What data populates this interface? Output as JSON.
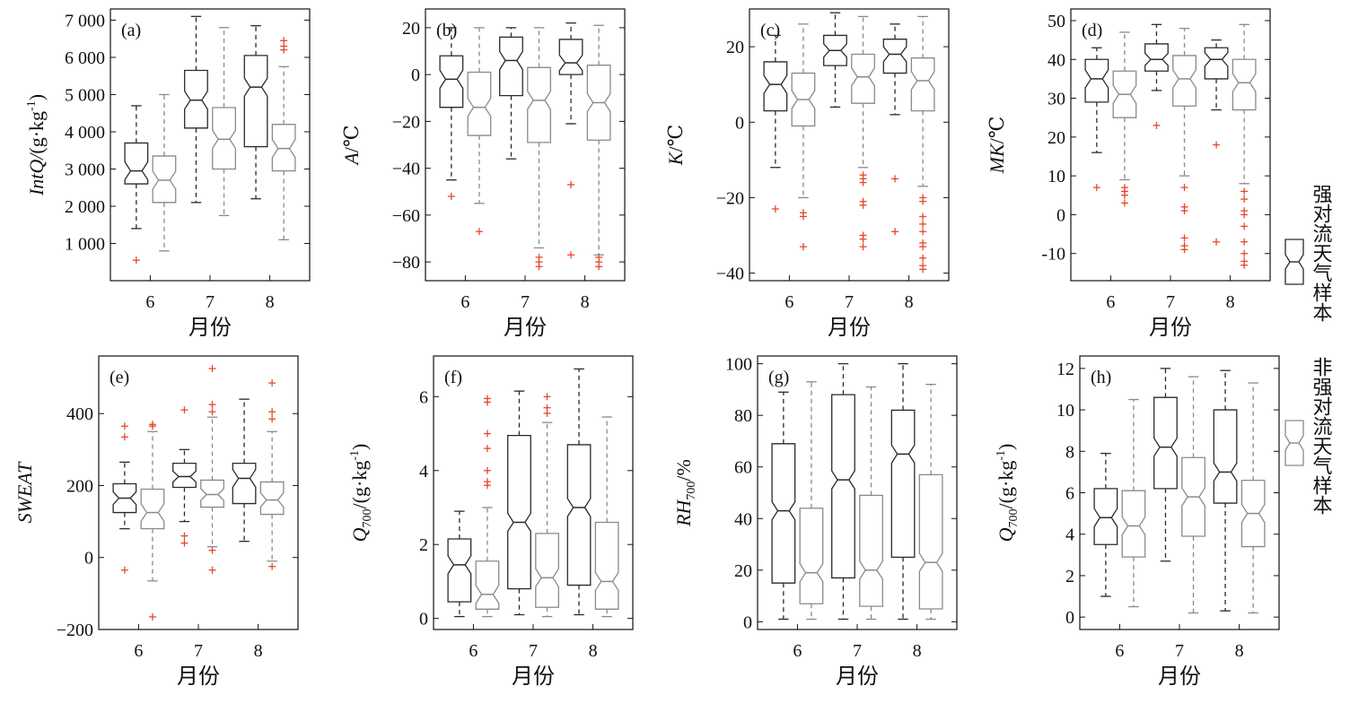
{
  "colors": {
    "strong": "#2a2a2a",
    "nonstrong": "#8a8a8a",
    "outlier": "#e8472b",
    "axis": "#111111"
  },
  "legend": {
    "strong_label": "强对流天气样本",
    "nonstrong_label": "非强对流天气样本"
  },
  "chart_data": [
    {
      "type": "box",
      "panel": "(a)",
      "ylabel_parts": [
        {
          "text": "IntQ/",
          "italic": true
        },
        {
          "text": "(g·kg",
          "italic": false
        },
        {
          "text": "-1",
          "italic": false,
          "sup": true
        },
        {
          "text": ")",
          "italic": false
        }
      ],
      "xlabel": "月份",
      "categories": [
        "6",
        "7",
        "8"
      ],
      "ylim": [
        0,
        7300
      ],
      "yticks": [
        1000,
        2000,
        3000,
        4000,
        5000,
        6000,
        7000
      ],
      "ytick_labels": [
        "1 000",
        "2 000",
        "3 000",
        "4 000",
        "5 000",
        "6 000",
        "7 000"
      ],
      "series": [
        {
          "name": "强对流天气样本",
          "boxes": [
            {
              "month": "6",
              "min": 1400,
              "q1": 2600,
              "median": 2950,
              "q3": 3700,
              "max": 4700,
              "outliers": [
                550
              ]
            },
            {
              "month": "7",
              "min": 2100,
              "q1": 4100,
              "median": 4850,
              "q3": 5650,
              "max": 7100,
              "outliers": []
            },
            {
              "month": "8",
              "min": 2200,
              "q1": 3600,
              "median": 5200,
              "q3": 6050,
              "max": 6850,
              "outliers": []
            }
          ]
        },
        {
          "name": "非强对流天气样本",
          "boxes": [
            {
              "month": "6",
              "min": 800,
              "q1": 2100,
              "median": 2700,
              "q3": 3350,
              "max": 5000,
              "outliers": []
            },
            {
              "month": "7",
              "min": 1750,
              "q1": 3000,
              "median": 3800,
              "q3": 4650,
              "max": 6800,
              "outliers": []
            },
            {
              "month": "8",
              "min": 1100,
              "q1": 2950,
              "median": 3550,
              "q3": 4200,
              "max": 5750,
              "outliers": [
                6200,
                6300,
                6450
              ]
            }
          ]
        }
      ]
    },
    {
      "type": "box",
      "panel": "(b)",
      "ylabel_parts": [
        {
          "text": "A",
          "italic": true
        },
        {
          "text": "/℃",
          "italic": false
        }
      ],
      "xlabel": "月份",
      "categories": [
        "6",
        "7",
        "8"
      ],
      "ylim": [
        -88,
        28
      ],
      "yticks": [
        -80,
        -60,
        -40,
        -20,
        0,
        20
      ],
      "ytick_labels": [
        "−80",
        "−60",
        "−40",
        "−20",
        "0",
        "20"
      ],
      "series": [
        {
          "name": "强对流天气样本",
          "boxes": [
            {
              "month": "6",
              "min": -45,
              "q1": -14,
              "median": -2,
              "q3": 8,
              "max": 20,
              "outliers": [
                -52
              ]
            },
            {
              "month": "7",
              "min": -36,
              "q1": -9,
              "median": 6,
              "q3": 16,
              "max": 20,
              "outliers": []
            },
            {
              "month": "8",
              "min": -21,
              "q1": 0,
              "median": 5,
              "q3": 15,
              "max": 22,
              "outliers": [
                -47,
                -77
              ]
            }
          ]
        },
        {
          "name": "非强对流天气样本",
          "boxes": [
            {
              "month": "6",
              "min": -55,
              "q1": -26,
              "median": -14,
              "q3": 1,
              "max": 20,
              "outliers": [
                -67
              ]
            },
            {
              "month": "7",
              "min": -74,
              "q1": -29,
              "median": -11,
              "q3": 3,
              "max": 20,
              "outliers": [
                -78,
                -80,
                -82
              ]
            },
            {
              "month": "8",
              "min": -77,
              "q1": -28,
              "median": -12,
              "q3": 4,
              "max": 21,
              "outliers": [
                -78,
                -80,
                -82
              ]
            }
          ]
        }
      ]
    },
    {
      "type": "box",
      "panel": "(c)",
      "ylabel_parts": [
        {
          "text": "K",
          "italic": true
        },
        {
          "text": "/℃",
          "italic": false
        }
      ],
      "xlabel": "月份",
      "categories": [
        "6",
        "7",
        "8"
      ],
      "ylim": [
        -42,
        30
      ],
      "yticks": [
        -40,
        -20,
        0,
        20
      ],
      "ytick_labels": [
        "−40",
        "−20",
        "0",
        "20"
      ],
      "series": [
        {
          "name": "强对流天气样本",
          "boxes": [
            {
              "month": "6",
              "min": -12,
              "q1": 3,
              "median": 10,
              "q3": 16,
              "max": 23,
              "outliers": [
                -23
              ]
            },
            {
              "month": "7",
              "min": 4,
              "q1": 15,
              "median": 19,
              "q3": 23,
              "max": 29,
              "outliers": []
            },
            {
              "month": "8",
              "min": 2,
              "q1": 13,
              "median": 18,
              "q3": 22,
              "max": 26,
              "outliers": [
                -15,
                -29
              ]
            }
          ]
        },
        {
          "name": "非强对流天气样本",
          "boxes": [
            {
              "month": "6",
              "min": -20,
              "q1": -1,
              "median": 6,
              "q3": 13,
              "max": 26,
              "outliers": [
                -24,
                -25,
                -33
              ]
            },
            {
              "month": "7",
              "min": -12,
              "q1": 5,
              "median": 12,
              "q3": 18,
              "max": 28,
              "outliers": [
                -14,
                -15,
                -16,
                -21,
                -22,
                -30,
                -31,
                -33
              ]
            },
            {
              "month": "8",
              "min": -17,
              "q1": 3,
              "median": 11,
              "q3": 17,
              "max": 28,
              "outliers": [
                -20,
                -21,
                -25,
                -27,
                -29,
                -32,
                -33,
                -36,
                -38,
                -39
              ]
            }
          ]
        }
      ]
    },
    {
      "type": "box",
      "panel": "(d)",
      "ylabel_parts": [
        {
          "text": "MK",
          "italic": true
        },
        {
          "text": "/℃",
          "italic": false
        }
      ],
      "xlabel": "月份",
      "categories": [
        "6",
        "7",
        "8"
      ],
      "ylim": [
        -17,
        53
      ],
      "yticks": [
        -10,
        0,
        10,
        20,
        30,
        40,
        50
      ],
      "ytick_labels": [
        "-10",
        "0",
        "10",
        "20",
        "30",
        "40",
        "50"
      ],
      "series": [
        {
          "name": "强对流天气样本",
          "boxes": [
            {
              "month": "6",
              "min": 16,
              "q1": 29,
              "median": 35,
              "q3": 40,
              "max": 43,
              "outliers": [
                7
              ]
            },
            {
              "month": "7",
              "min": 32,
              "q1": 37,
              "median": 40,
              "q3": 44,
              "max": 49,
              "outliers": [
                23
              ]
            },
            {
              "month": "8",
              "min": 27,
              "q1": 35,
              "median": 40,
              "q3": 43,
              "max": 45,
              "outliers": [
                18,
                -7
              ]
            }
          ]
        },
        {
          "name": "非强对流天气样本",
          "boxes": [
            {
              "month": "6",
              "min": 9,
              "q1": 25,
              "median": 31,
              "q3": 37,
              "max": 47,
              "outliers": [
                3,
                5,
                6,
                7
              ]
            },
            {
              "month": "7",
              "min": 10,
              "q1": 28,
              "median": 35,
              "q3": 41,
              "max": 48,
              "outliers": [
                -6,
                -8,
                -9,
                1,
                2,
                7
              ]
            },
            {
              "month": "8",
              "min": 8,
              "q1": 27,
              "median": 34,
              "q3": 40,
              "max": 49,
              "outliers": [
                -13,
                -12,
                -10,
                -7,
                -3,
                0,
                1,
                4,
                6
              ]
            }
          ]
        }
      ]
    },
    {
      "type": "box",
      "panel": "(e)",
      "ylabel_parts": [
        {
          "text": "SWEAT",
          "italic": true
        }
      ],
      "xlabel": "月份",
      "categories": [
        "6",
        "7",
        "8"
      ],
      "ylim": [
        -200,
        560
      ],
      "yticks": [
        -200,
        0,
        200,
        400
      ],
      "ytick_labels": [
        "−200",
        "0",
        "200",
        "400"
      ],
      "series": [
        {
          "name": "强对流天气样本",
          "boxes": [
            {
              "month": "6",
              "min": 80,
              "q1": 125,
              "median": 165,
              "q3": 205,
              "max": 265,
              "outliers": [
                335,
                365,
                -35
              ]
            },
            {
              "month": "7",
              "min": 100,
              "q1": 195,
              "median": 225,
              "q3": 262,
              "max": 300,
              "outliers": [
                60,
                40,
                410
              ]
            },
            {
              "month": "8",
              "min": 45,
              "q1": 150,
              "median": 220,
              "q3": 262,
              "max": 440,
              "outliers": []
            }
          ]
        },
        {
          "name": "非强对流天气样本",
          "boxes": [
            {
              "month": "6",
              "min": -65,
              "q1": 80,
              "median": 125,
              "q3": 190,
              "max": 350,
              "outliers": [
                365,
                370,
                -165
              ]
            },
            {
              "month": "7",
              "min": 30,
              "q1": 140,
              "median": 175,
              "q3": 215,
              "max": 390,
              "outliers": [
                405,
                425,
                525,
                20,
                -35
              ]
            },
            {
              "month": "8",
              "min": -10,
              "q1": 120,
              "median": 160,
              "q3": 210,
              "max": 350,
              "outliers": [
                385,
                405,
                485,
                -25
              ]
            }
          ]
        }
      ]
    },
    {
      "type": "box",
      "panel": "(f)",
      "ylabel_parts": [
        {
          "text": "Q",
          "italic": true
        },
        {
          "text": "700",
          "italic": false,
          "sub": true
        },
        {
          "text": "/(g·kg",
          "italic": false
        },
        {
          "text": "-1",
          "italic": false,
          "sup": true
        },
        {
          "text": ")",
          "italic": false
        }
      ],
      "xlabel": "月份",
      "categories": [
        "6",
        "7",
        "8"
      ],
      "ylim": [
        -0.3,
        7.1
      ],
      "yticks": [
        0,
        2,
        4,
        6
      ],
      "ytick_labels": [
        "0",
        "2",
        "4",
        "6"
      ],
      "series": [
        {
          "name": "强对流天气样本",
          "boxes": [
            {
              "month": "6",
              "min": 0.05,
              "q1": 0.45,
              "median": 1.45,
              "q3": 2.15,
              "max": 2.9,
              "outliers": []
            },
            {
              "month": "7",
              "min": 0.1,
              "q1": 0.8,
              "median": 2.6,
              "q3": 4.95,
              "max": 6.15,
              "outliers": []
            },
            {
              "month": "8",
              "min": 0.1,
              "q1": 0.9,
              "median": 3.0,
              "q3": 4.7,
              "max": 6.75,
              "outliers": []
            }
          ]
        },
        {
          "name": "非强对流天气样本",
          "boxes": [
            {
              "month": "6",
              "min": 0.05,
              "q1": 0.25,
              "median": 0.65,
              "q3": 1.55,
              "max": 3.0,
              "outliers": [
                3.6,
                3.7,
                4.0,
                4.6,
                5.0,
                5.85,
                5.95
              ]
            },
            {
              "month": "7",
              "min": 0.05,
              "q1": 0.3,
              "median": 1.1,
              "q3": 2.3,
              "max": 5.3,
              "outliers": [
                5.55,
                5.7,
                6.0
              ]
            },
            {
              "month": "8",
              "min": 0.05,
              "q1": 0.25,
              "median": 1.0,
              "q3": 2.6,
              "max": 5.45,
              "outliers": []
            }
          ]
        }
      ]
    },
    {
      "type": "box",
      "panel": "(g)",
      "ylabel_parts": [
        {
          "text": "RH",
          "italic": true
        },
        {
          "text": "700",
          "italic": false,
          "sub": true
        },
        {
          "text": "/%",
          "italic": false
        }
      ],
      "xlabel": "月份",
      "categories": [
        "6",
        "7",
        "8"
      ],
      "ylim": [
        -3,
        103
      ],
      "yticks": [
        0,
        20,
        40,
        60,
        80,
        100
      ],
      "ytick_labels": [
        "0",
        "20",
        "40",
        "60",
        "80",
        "100"
      ],
      "series": [
        {
          "name": "强对流天气样本",
          "boxes": [
            {
              "month": "6",
              "min": 1,
              "q1": 15,
              "median": 43,
              "q3": 69,
              "max": 89,
              "outliers": []
            },
            {
              "month": "7",
              "min": 1,
              "q1": 17,
              "median": 55,
              "q3": 88,
              "max": 100,
              "outliers": []
            },
            {
              "month": "8",
              "min": 1,
              "q1": 25,
              "median": 65,
              "q3": 82,
              "max": 100,
              "outliers": []
            }
          ]
        },
        {
          "name": "非强对流天气样本",
          "boxes": [
            {
              "month": "6",
              "min": 1,
              "q1": 7,
              "median": 19,
              "q3": 44,
              "max": 93,
              "outliers": []
            },
            {
              "month": "7",
              "min": 1,
              "q1": 6,
              "median": 20,
              "q3": 49,
              "max": 91,
              "outliers": []
            },
            {
              "month": "8",
              "min": 1,
              "q1": 5,
              "median": 23,
              "q3": 57,
              "max": 92,
              "outliers": []
            }
          ]
        }
      ]
    },
    {
      "type": "box",
      "panel": "(h)",
      "ylabel_parts": [
        {
          "text": "Q",
          "italic": true
        },
        {
          "text": "700",
          "italic": false,
          "sub": true
        },
        {
          "text": "/(g·kg",
          "italic": false
        },
        {
          "text": "-1",
          "italic": false,
          "sup": true
        },
        {
          "text": ")",
          "italic": false
        }
      ],
      "xlabel": "月份",
      "categories": [
        "6",
        "7",
        "8"
      ],
      "ylim": [
        -0.6,
        12.6
      ],
      "yticks": [
        0,
        2,
        4,
        6,
        8,
        10,
        12
      ],
      "ytick_labels": [
        "0",
        "2",
        "4",
        "6",
        "8",
        "10",
        "12"
      ],
      "series": [
        {
          "name": "强对流天气样本",
          "boxes": [
            {
              "month": "6",
              "min": 1.0,
              "q1": 3.5,
              "median": 4.8,
              "q3": 6.2,
              "max": 7.9,
              "outliers": []
            },
            {
              "month": "7",
              "min": 2.7,
              "q1": 6.2,
              "median": 8.2,
              "q3": 10.6,
              "max": 12.0,
              "outliers": []
            },
            {
              "month": "8",
              "min": 0.3,
              "q1": 5.5,
              "median": 7.0,
              "q3": 10.0,
              "max": 11.9,
              "outliers": []
            }
          ]
        },
        {
          "name": "非强对流天气样本",
          "boxes": [
            {
              "month": "6",
              "min": 0.5,
              "q1": 2.9,
              "median": 4.4,
              "q3": 6.1,
              "max": 10.5,
              "outliers": []
            },
            {
              "month": "7",
              "min": 0.2,
              "q1": 3.9,
              "median": 5.8,
              "q3": 7.7,
              "max": 11.6,
              "outliers": []
            },
            {
              "month": "8",
              "min": 0.2,
              "q1": 3.4,
              "median": 5.0,
              "q3": 6.6,
              "max": 11.3,
              "outliers": []
            }
          ]
        }
      ]
    }
  ]
}
